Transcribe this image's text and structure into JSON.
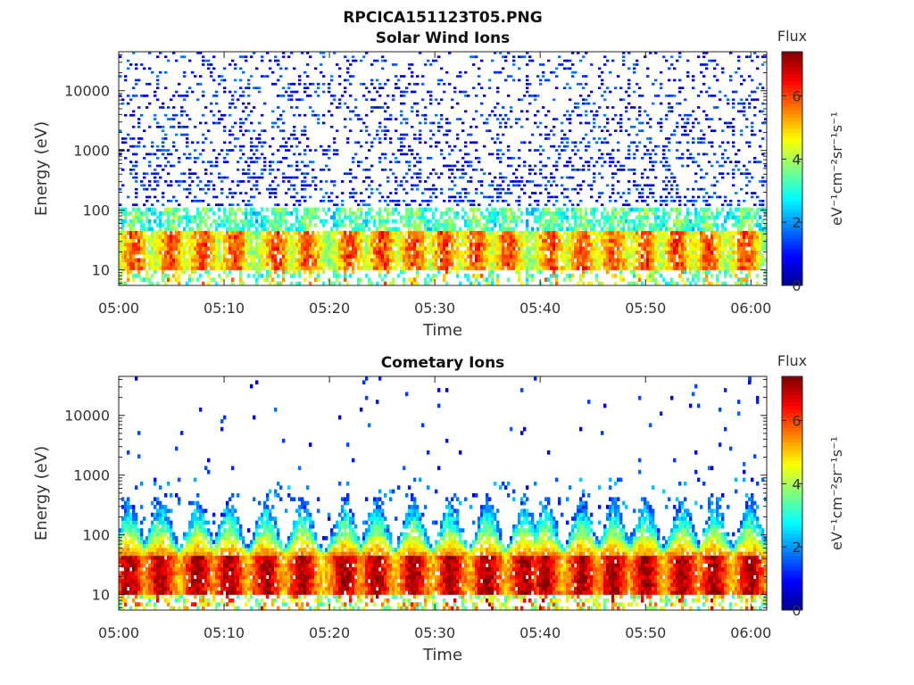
{
  "figure": {
    "title_line1": "RPCICA151123T05.PNG"
  },
  "colors": {
    "colormap": [
      "#00008f",
      "#0000ff",
      "#0080ff",
      "#00ffff",
      "#80ff80",
      "#ffff00",
      "#ff8000",
      "#ff0000",
      "#800000"
    ]
  },
  "chart_data": [
    {
      "type": "heatmap",
      "title": "Solar Wind Ions",
      "xlabel": "Time",
      "ylabel": "Energy (eV)",
      "x_ticks": [
        "05:00",
        "05:10",
        "05:20",
        "05:30",
        "05:40",
        "05:50",
        "06:00"
      ],
      "x_range_minutes": [
        0,
        61.5
      ],
      "y_ticks": [
        "10",
        "100",
        "1000",
        "10000"
      ],
      "y_scale": "log",
      "ylim": [
        5.5,
        45000
      ],
      "colorbar": {
        "label_top": "Flux",
        "label": "eV⁻¹cm⁻²sr⁻¹s⁻¹",
        "ticks": [
          "0",
          "2",
          "4",
          "6"
        ],
        "range": [
          0,
          7.4
        ]
      },
      "description": "Sparse low-flux counts (0.5–2) scattered from ~100 eV to ~30 keV; dense band of flux 3–6.5 between ~10 and ~45 eV with intermittent peaks",
      "band": {
        "energy_range_eV": [
          10,
          45
        ],
        "peak_flux": 6.3
      },
      "peak_times_minutes": [
        1.5,
        5,
        8,
        11,
        15,
        18,
        22,
        25,
        28,
        31,
        34,
        37,
        41,
        44,
        47,
        50,
        53,
        56,
        59.5
      ]
    },
    {
      "type": "heatmap",
      "title": "Cometary Ions",
      "xlabel": "Time",
      "ylabel": "Energy (eV)",
      "x_ticks": [
        "05:00",
        "05:10",
        "05:20",
        "05:30",
        "05:40",
        "05:50",
        "06:00"
      ],
      "x_range_minutes": [
        0,
        61.5
      ],
      "y_ticks": [
        "10",
        "100",
        "1000",
        "10000"
      ],
      "y_scale": "log",
      "ylim": [
        5.5,
        45000
      ],
      "colorbar": {
        "label_top": "Flux",
        "label": "eV⁻¹cm⁻²sr⁻¹s⁻¹",
        "ticks": [
          "0",
          "2",
          "4",
          "6"
        ],
        "range": [
          0,
          7.4
        ]
      },
      "description": "Intense band (flux 6–7.3) between ~10 and ~45 eV, with periodic bursts extending up to ~500 eV; very sparse counts up to ~20 keV",
      "band": {
        "energy_range_eV": [
          10,
          45
        ],
        "peak_flux": 7.2
      },
      "burst_times_minutes": [
        1,
        4,
        7.5,
        10.5,
        14,
        17.5,
        21.5,
        24.5,
        28,
        31.5,
        35,
        38.5,
        40.5,
        44,
        47,
        50,
        53.5,
        56.5,
        60
      ]
    }
  ]
}
